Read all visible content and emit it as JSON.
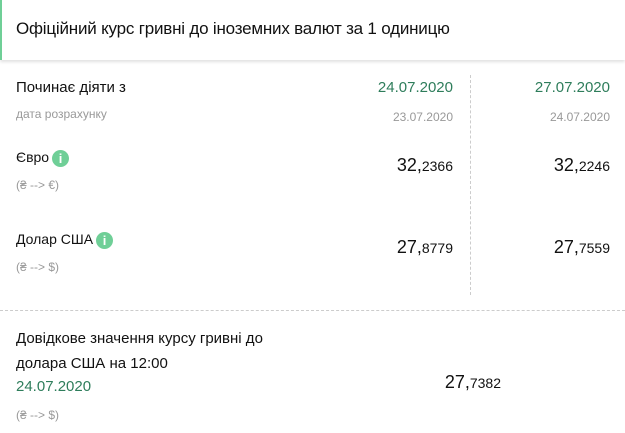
{
  "header": {
    "title": "Офіційний курс гривні до іноземних валют за 1 одиницю"
  },
  "table": {
    "starts_label": "Починає діяти з",
    "calc_label": "дата розрахунку",
    "columns": [
      {
        "date": "24.07.2020",
        "calc_date": "23.07.2020"
      },
      {
        "date": "27.07.2020",
        "calc_date": "24.07.2020"
      }
    ],
    "rows": [
      {
        "name": "Євро",
        "pair": "(₴ --> €)",
        "values": [
          {
            "int": "32,",
            "dec": "2366"
          },
          {
            "int": "32,",
            "dec": "2246"
          }
        ]
      },
      {
        "name": "Долар США",
        "pair": "(₴ --> $)",
        "values": [
          {
            "int": "27,",
            "dec": "8779"
          },
          {
            "int": "27,",
            "dec": "7559"
          }
        ]
      }
    ]
  },
  "reference": {
    "line1": "Довідкове значення курсу гривні до",
    "line2": "долара США на 12:00",
    "date": "24.07.2020",
    "pair": "(₴ --> $)",
    "value": {
      "int": "27,",
      "dec": "7382"
    }
  },
  "colors": {
    "accent": "#6fcf97",
    "date_green": "#2e7d5b"
  },
  "icons": {
    "info": "info-icon"
  }
}
